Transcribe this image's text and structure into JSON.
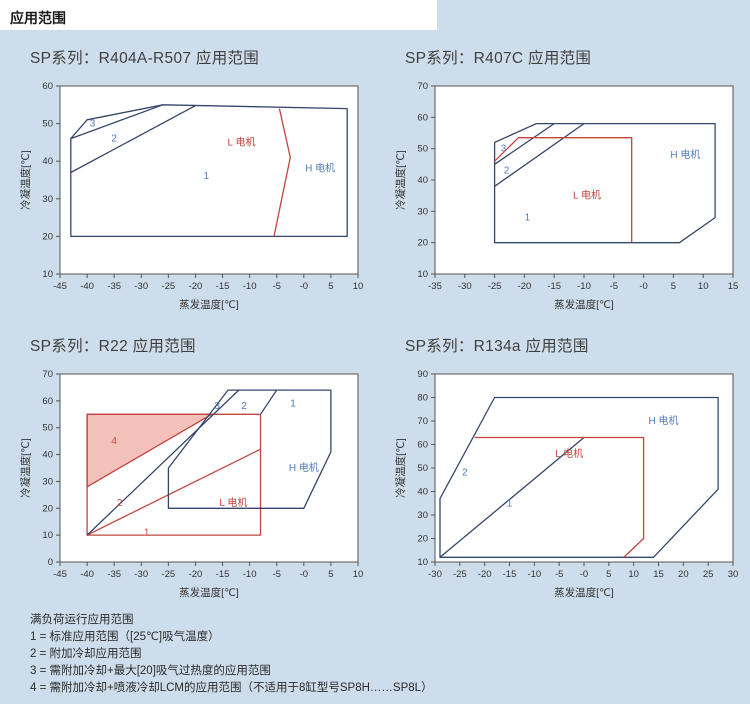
{
  "page": {
    "title": "应用范围"
  },
  "colors": {
    "panel_bg": "#cdddeb",
    "plot_bg": "#ffffff",
    "plot_border": "#555555",
    "navy": "#36466b",
    "red": "#c0453e",
    "pink": "#f3c1ba",
    "label_blue": "#4f7db8",
    "tick_text": "#333333",
    "title_text": "#404040",
    "legend_text": "#2b2b2b"
  },
  "legend": {
    "title": "满负荷运行应用范围",
    "items": [
      "1 = 标准应用范围（[25℃]吸气温度）",
      "2 = 附加冷却应用范围",
      "3 = 需附加冷却+最大[20]吸气过热度的应用范围",
      "4 = 需附加冷却+喷液冷却LCM的应用范围（不适用于8缸型号SP8H……SP8L）"
    ]
  },
  "chart_data": [
    {
      "id": "r404a-r507",
      "type": "operating-envelope",
      "title": "SP系列：R404A-R507 应用范围",
      "refrigerant": "R404A-R507",
      "xlabel": "蒸发温度[℃]",
      "ylabel": "冷凝温度[℃]",
      "xlim": [
        -45,
        10
      ],
      "ylim": [
        10,
        60
      ],
      "grid": false,
      "xticks": [
        [
          -45,
          "-45"
        ],
        [
          -40,
          "-40"
        ],
        [
          -35,
          "-35"
        ],
        [
          -30,
          "-30"
        ],
        [
          -25,
          "-25"
        ],
        [
          -20,
          "-20"
        ],
        [
          -15,
          "-15"
        ],
        [
          -10,
          "-10"
        ],
        [
          -5,
          "-5"
        ],
        [
          0,
          "-0"
        ],
        [
          5,
          "5"
        ],
        [
          10,
          "10"
        ]
      ],
      "yticks": [
        [
          10,
          "10"
        ],
        [
          20,
          "20"
        ],
        [
          30,
          "30"
        ],
        [
          40,
          "40"
        ],
        [
          50,
          "50"
        ],
        [
          60,
          "60"
        ]
      ],
      "shapes": [
        {
          "name": "operating-envelope",
          "kind": "polygon",
          "color": "navy",
          "points": [
            [
              -43,
              20
            ],
            [
              -43,
              46
            ],
            [
              -40,
              51
            ],
            [
              -26,
              55
            ],
            [
              8,
              54
            ],
            [
              8,
              20
            ]
          ]
        },
        {
          "name": "region-3-boundary",
          "kind": "polyline",
          "color": "navy",
          "points": [
            [
              -43,
              46
            ],
            [
              -26,
              55
            ]
          ]
        },
        {
          "name": "region-2-boundary",
          "kind": "polyline",
          "color": "navy",
          "points": [
            [
              -43,
              37
            ],
            [
              -20,
              54.8
            ]
          ]
        },
        {
          "name": "l-motor-boundary",
          "kind": "polyline",
          "color": "red",
          "points": [
            [
              -4.5,
              54
            ],
            [
              -2.5,
              41
            ],
            [
              -5.5,
              20
            ]
          ]
        }
      ],
      "labels": [
        {
          "name": "region-3-label",
          "text": "3",
          "x": -39,
          "y": 50,
          "color": "blue"
        },
        {
          "name": "region-2-label",
          "text": "2",
          "x": -35,
          "y": 46,
          "color": "blue"
        },
        {
          "name": "region-1-label",
          "text": "1",
          "x": -18,
          "y": 36,
          "color": "blue"
        },
        {
          "name": "l-motor-label",
          "text": "L 电机",
          "x": -11.5,
          "y": 45,
          "color": "red"
        },
        {
          "name": "h-motor-label",
          "text": "H 电机",
          "x": 3,
          "y": 38,
          "color": "blue"
        }
      ]
    },
    {
      "id": "r407c",
      "type": "operating-envelope",
      "title": "SP系列：R407C 应用范围",
      "refrigerant": "R407C",
      "xlabel": "蒸发温度[℃]",
      "ylabel": "冷凝温度[℃]",
      "xlim": [
        -35,
        15
      ],
      "ylim": [
        10,
        70
      ],
      "grid": false,
      "xticks": [
        [
          -35,
          "-35"
        ],
        [
          -30,
          "-30"
        ],
        [
          -25,
          "-25"
        ],
        [
          -20,
          "-20"
        ],
        [
          -15,
          "-15"
        ],
        [
          -10,
          "-10"
        ],
        [
          -5,
          "-5"
        ],
        [
          0,
          "-0"
        ],
        [
          5,
          "5"
        ],
        [
          10,
          "10"
        ],
        [
          15,
          "15"
        ]
      ],
      "yticks": [
        [
          10,
          "10"
        ],
        [
          20,
          "20"
        ],
        [
          30,
          "30"
        ],
        [
          40,
          "40"
        ],
        [
          50,
          "50"
        ],
        [
          60,
          "60"
        ],
        [
          70,
          "70"
        ]
      ],
      "shapes": [
        {
          "name": "operating-envelope",
          "kind": "polygon",
          "color": "navy",
          "points": [
            [
              -25,
              20
            ],
            [
              -25,
              52
            ],
            [
              -18,
              58
            ],
            [
              12,
              58
            ],
            [
              12,
              28
            ],
            [
              6,
              20
            ]
          ]
        },
        {
          "name": "region-3-boundary",
          "kind": "polyline",
          "color": "navy",
          "points": [
            [
              -25,
              45
            ],
            [
              -15,
              58
            ]
          ]
        },
        {
          "name": "region-2-boundary",
          "kind": "polyline",
          "color": "navy",
          "points": [
            [
              -25,
              38
            ],
            [
              -10,
              58
            ]
          ]
        },
        {
          "name": "l-motor-boundary",
          "kind": "polyline",
          "color": "red",
          "points": [
            [
              -25,
              46
            ],
            [
              -21,
              53.5
            ],
            [
              -2,
              53.5
            ],
            [
              -2,
              20
            ]
          ]
        }
      ],
      "labels": [
        {
          "name": "region-3-label",
          "text": "3",
          "x": -23.5,
          "y": 50,
          "color": "blue"
        },
        {
          "name": "region-2-label",
          "text": "2",
          "x": -23,
          "y": 43,
          "color": "blue"
        },
        {
          "name": "region-1-label",
          "text": "1",
          "x": -19.5,
          "y": 28,
          "color": "blue"
        },
        {
          "name": "l-motor-label",
          "text": "L 电机",
          "x": -9.5,
          "y": 35,
          "color": "red"
        },
        {
          "name": "h-motor-label",
          "text": "H 电机",
          "x": 7,
          "y": 48,
          "color": "blue"
        }
      ]
    },
    {
      "id": "r22",
      "type": "operating-envelope",
      "title": "SP系列：R22 应用范围",
      "refrigerant": "R22",
      "xlabel": "蒸发温度[℃]",
      "ylabel": "冷凝温度[℃]",
      "xlim": [
        -45,
        10
      ],
      "ylim": [
        0,
        70
      ],
      "grid": false,
      "xticks": [
        [
          -45,
          "-45"
        ],
        [
          -40,
          "-40"
        ],
        [
          -35,
          "-35"
        ],
        [
          -30,
          "-30"
        ],
        [
          -25,
          "-25"
        ],
        [
          -20,
          "-20"
        ],
        [
          -15,
          "-15"
        ],
        [
          -10,
          "-10"
        ],
        [
          -5,
          "-5"
        ],
        [
          0,
          "-0"
        ],
        [
          5,
          "5"
        ],
        [
          10,
          "10"
        ]
      ],
      "yticks": [
        [
          0,
          "0"
        ],
        [
          10,
          "10"
        ],
        [
          20,
          "20"
        ],
        [
          30,
          "30"
        ],
        [
          40,
          "40"
        ],
        [
          50,
          "50"
        ],
        [
          60,
          "60"
        ],
        [
          70,
          "70"
        ]
      ],
      "shapes": [
        {
          "name": "region-4-area",
          "kind": "polygon",
          "color": "red",
          "fill": "pink",
          "points": [
            [
              -40,
              28
            ],
            [
              -40,
              55
            ],
            [
              -17,
              55
            ]
          ]
        },
        {
          "name": "l-motor-envelope",
          "kind": "polygon",
          "color": "red",
          "points": [
            [
              -40,
              10
            ],
            [
              -40,
              55
            ],
            [
              -8,
              55
            ],
            [
              -8,
              10
            ]
          ]
        },
        {
          "name": "region-1-2-boundary",
          "kind": "polyline",
          "color": "red",
          "points": [
            [
              -40,
              10
            ],
            [
              -8,
              42
            ]
          ]
        },
        {
          "name": "h-motor-envelope",
          "kind": "polygon",
          "color": "navy",
          "points": [
            [
              -25,
              20
            ],
            [
              -25,
              35
            ],
            [
              -14,
              64
            ],
            [
              5,
              64
            ],
            [
              5,
              41
            ],
            [
              0,
              20
            ]
          ]
        },
        {
          "name": "superheat-boundary",
          "kind": "polyline",
          "color": "navy",
          "points": [
            [
              -40,
              10
            ],
            [
              -12,
              64
            ]
          ]
        },
        {
          "name": "region-2-1-boundary",
          "kind": "polyline",
          "color": "navy",
          "points": [
            [
              -8,
              55
            ],
            [
              -5,
              64
            ]
          ]
        }
      ],
      "labels": [
        {
          "name": "region-4-label",
          "text": "4",
          "x": -35,
          "y": 45,
          "color": "red"
        },
        {
          "name": "region-2-low-label",
          "text": "2",
          "x": -34,
          "y": 22,
          "color": "red"
        },
        {
          "name": "region-1-low-label",
          "text": "1",
          "x": -29,
          "y": 11,
          "color": "red"
        },
        {
          "name": "region-3-label",
          "text": "3",
          "x": -16,
          "y": 58,
          "color": "blue"
        },
        {
          "name": "region-2-high-label",
          "text": "2",
          "x": -11,
          "y": 58,
          "color": "blue"
        },
        {
          "name": "region-1-high-label",
          "text": "1",
          "x": -2,
          "y": 59,
          "color": "blue"
        },
        {
          "name": "l-motor-label",
          "text": "L 电机",
          "x": -13,
          "y": 22,
          "color": "red"
        },
        {
          "name": "h-motor-label",
          "text": "H 电机",
          "x": 0,
          "y": 35,
          "color": "blue"
        }
      ]
    },
    {
      "id": "r134a",
      "type": "operating-envelope",
      "title": "SP系列：R134a 应用范围",
      "refrigerant": "R134a",
      "xlabel": "蒸发温度[℃]",
      "ylabel": "冷凝温度[℃]",
      "xlim": [
        -30,
        30
      ],
      "ylim": [
        10,
        90
      ],
      "grid": false,
      "xticks": [
        [
          -30,
          "-30"
        ],
        [
          -25,
          "-25"
        ],
        [
          -20,
          "-20"
        ],
        [
          -15,
          "-15"
        ],
        [
          -10,
          "-10"
        ],
        [
          -5,
          "-5"
        ],
        [
          0,
          "-0"
        ],
        [
          5,
          "5"
        ],
        [
          10,
          "10"
        ],
        [
          15,
          "15"
        ],
        [
          20,
          "20"
        ],
        [
          25,
          "25"
        ],
        [
          30,
          "30"
        ]
      ],
      "yticks": [
        [
          10,
          "10"
        ],
        [
          20,
          "20"
        ],
        [
          30,
          "30"
        ],
        [
          40,
          "40"
        ],
        [
          50,
          "50"
        ],
        [
          60,
          "60"
        ],
        [
          70,
          "70"
        ],
        [
          80,
          "80"
        ],
        [
          90,
          "90"
        ]
      ],
      "shapes": [
        {
          "name": "operating-envelope",
          "kind": "polygon",
          "color": "navy",
          "points": [
            [
              -29,
              12
            ],
            [
              -29,
              37
            ],
            [
              -18,
              80
            ],
            [
              27,
              80
            ],
            [
              27,
              41
            ],
            [
              14,
              12
            ]
          ]
        },
        {
          "name": "region-2-boundary",
          "kind": "polyline",
          "color": "navy",
          "points": [
            [
              -29,
              12
            ],
            [
              0,
              63
            ]
          ]
        },
        {
          "name": "l-motor-boundary",
          "kind": "polyline",
          "color": "red",
          "points": [
            [
              -22,
              63
            ],
            [
              12,
              63
            ],
            [
              12,
              20
            ],
            [
              8,
              12
            ]
          ]
        }
      ],
      "labels": [
        {
          "name": "region-2-label",
          "text": "2",
          "x": -24,
          "y": 48,
          "color": "blue"
        },
        {
          "name": "region-1-label",
          "text": "1",
          "x": -15,
          "y": 35,
          "color": "blue"
        },
        {
          "name": "l-motor-label",
          "text": "L 电机",
          "x": -3,
          "y": 56,
          "color": "red"
        },
        {
          "name": "h-motor-label",
          "text": "H 电机",
          "x": 16,
          "y": 70,
          "color": "blue"
        }
      ]
    }
  ]
}
